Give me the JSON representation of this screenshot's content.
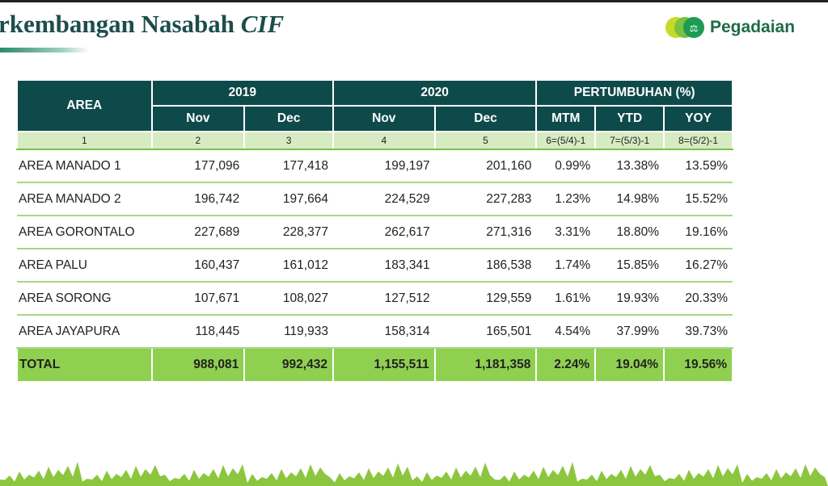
{
  "title": {
    "main": "rkembangan Nasabah ",
    "italic": "CIF"
  },
  "logo": {
    "text": "Pegadaian"
  },
  "colors": {
    "header": "#0f4a4b",
    "total": "#8fd050",
    "index": "#d6ebc2"
  },
  "table": {
    "area_header": "AREA",
    "groups": [
      "2019",
      "2020",
      "PERTUMBUHAN (%)"
    ],
    "subheaders": [
      "Nov",
      "Dec",
      "Nov",
      "Dec",
      "MTM",
      "YTD",
      "YOY"
    ],
    "index_row": [
      "1",
      "2",
      "3",
      "4",
      "5",
      "6=(5/4)-1",
      "7=(5/3)-1",
      "8=(5/2)-1"
    ],
    "rows": [
      [
        "AREA MANADO 1",
        "177,096",
        "177,418",
        "199,197",
        "201,160",
        "0.99%",
        "13.38%",
        "13.59%"
      ],
      [
        "AREA MANADO 2",
        "196,742",
        "197,664",
        "224,529",
        "227,283",
        "1.23%",
        "14.98%",
        "15.52%"
      ],
      [
        "AREA GORONTALO",
        "227,689",
        "228,377",
        "262,617",
        "271,316",
        "3.31%",
        "18.80%",
        "19.16%"
      ],
      [
        "AREA PALU",
        "160,437",
        "161,012",
        "183,341",
        "186,538",
        "1.74%",
        "15.85%",
        "16.27%"
      ],
      [
        "AREA SORONG",
        "107,671",
        "108,027",
        "127,512",
        "129,559",
        "1.61%",
        "19.93%",
        "20.33%"
      ],
      [
        "AREA JAYAPURA",
        "118,445",
        "119,933",
        "158,314",
        "165,501",
        "4.54%",
        "37.99%",
        "39.73%"
      ]
    ],
    "total": [
      "TOTAL",
      "988,081",
      "992,432",
      "1,155,511",
      "1,181,358",
      "2.24%",
      "19.04%",
      "19.56%"
    ]
  }
}
